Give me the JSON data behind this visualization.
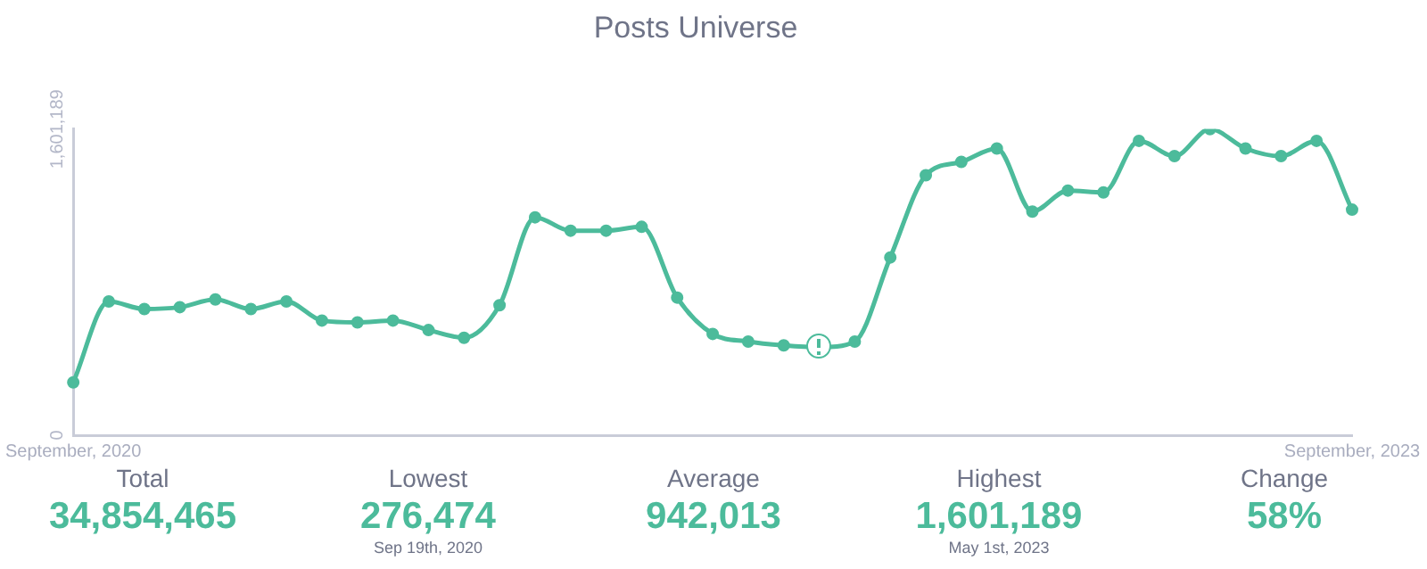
{
  "chart_data": [
    {
      "type": "line",
      "title": "Posts Universe",
      "categories": [
        "September, 2020",
        null,
        null,
        null,
        null,
        null,
        null,
        null,
        null,
        null,
        null,
        null,
        null,
        null,
        null,
        null,
        null,
        null,
        null,
        null,
        null,
        null,
        null,
        null,
        null,
        null,
        null,
        null,
        null,
        null,
        null,
        null,
        null,
        null,
        null,
        null,
        "September, 2023"
      ],
      "series": [
        {
          "color": "#4cbb9b",
          "values": [
            276474,
            700000,
            660000,
            670000,
            710000,
            660000,
            700000,
            600000,
            590000,
            600000,
            550000,
            510000,
            680000,
            1140000,
            1070000,
            1070000,
            1090000,
            720000,
            530000,
            490000,
            470000,
            460000,
            490000,
            930000,
            1360000,
            1430000,
            1500000,
            1170000,
            1280000,
            1270000,
            1540000,
            1460000,
            1601189,
            1500000,
            1460000,
            1540000,
            1180000
          ]
        }
      ],
      "ylim": [
        0,
        1601189
      ],
      "yticks": [
        0,
        {
          "value": 1601189,
          "label": "1,601,189"
        }
      ],
      "grid": false,
      "legend": false,
      "marker": "circle",
      "line_style": "solid"
    },
    {
      "type": "other",
      "categories": [
        "Total",
        "Lowest",
        "Average",
        "Highest",
        "Change"
      ],
      "value_labels": [
        "34,854,465",
        "276,474",
        "942,013",
        "1,601,189",
        "58%"
      ],
      "annotations": [
        {
          "text": "Sep 19th, 2020",
          "x": "Lowest"
        },
        {
          "text": "May 1st, 2023",
          "x": "Highest"
        }
      ]
    }
  ]
}
